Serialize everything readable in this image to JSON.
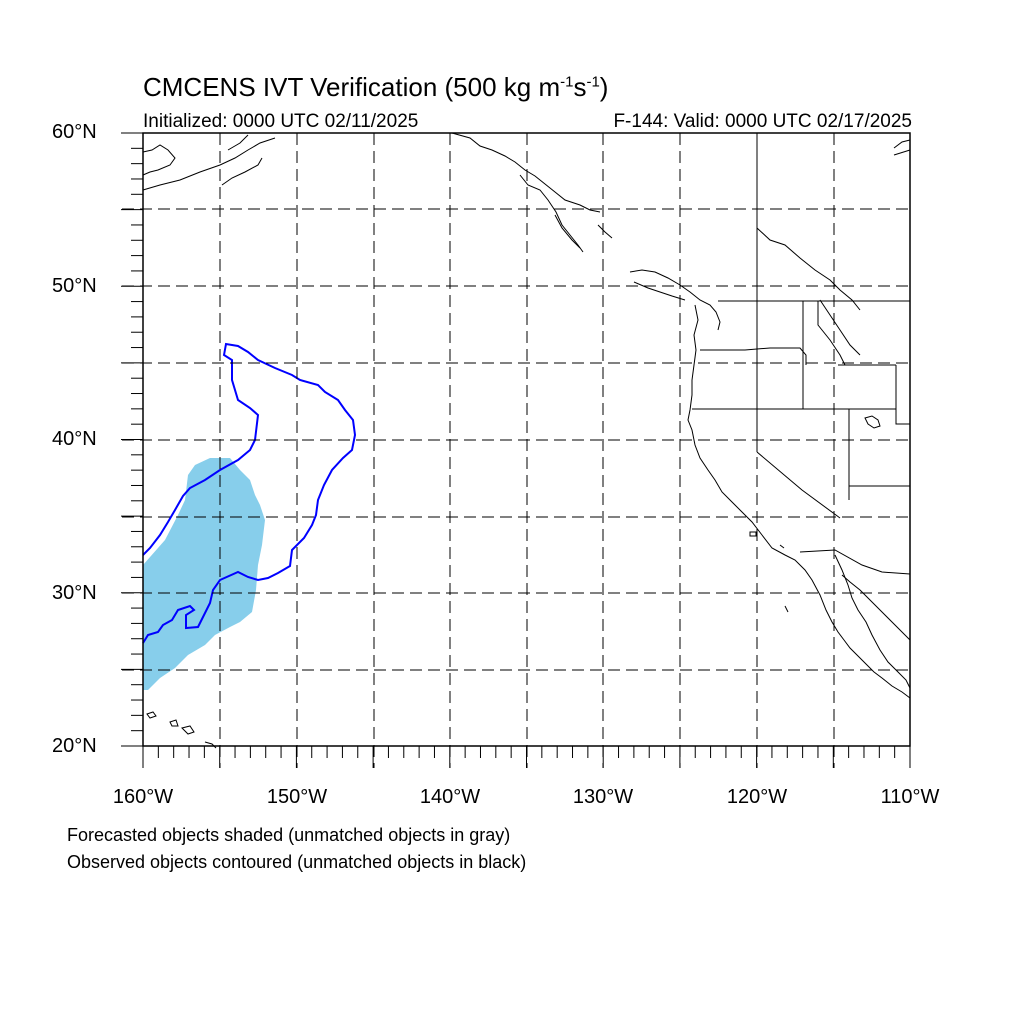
{
  "header": {
    "title_main": "CMCENS IVT Verification (500 kg m",
    "title_sup1": "-1",
    "title_mid": "s",
    "title_sup2": "-1",
    "title_end": ")",
    "initialized": "Initialized: 0000 UTC 02/11/2025",
    "valid": "F-144: Valid: 0000 UTC 02/17/2025"
  },
  "axes": {
    "lat_labels": [
      "60°N",
      "50°N",
      "40°N",
      "30°N",
      "20°N"
    ],
    "lon_labels": [
      "160°W",
      "150°W",
      "140°W",
      "130°W",
      "120°W",
      "110°W"
    ],
    "lat_range": [
      20,
      60
    ],
    "lon_range": [
      -160,
      -110
    ],
    "grid": "dashed, every 5 degrees"
  },
  "legend": {
    "line1": "Forecasted objects shaded (unmatched objects in gray)",
    "line2": "Observed objects contoured (unmatched objects in black)"
  },
  "colors": {
    "forecast_fill": "#87CEEB",
    "observed_contour": "#0000FF",
    "coastline": "#000000",
    "grid": "#000000"
  }
}
